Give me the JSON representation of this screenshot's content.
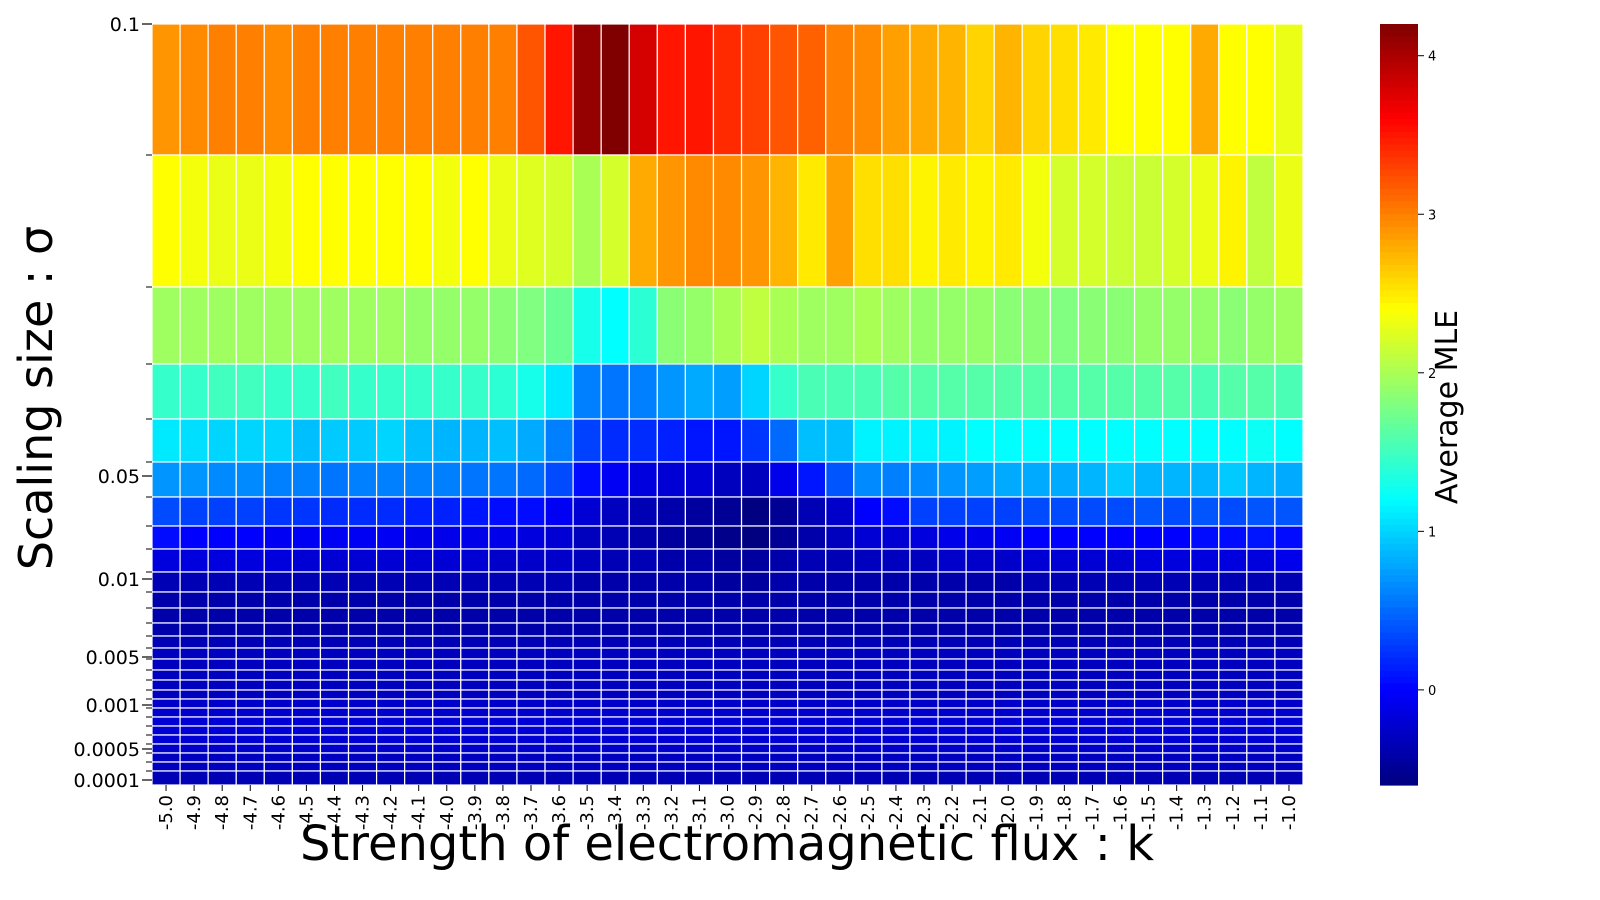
{
  "chart_data": {
    "type": "heatmap",
    "title": "",
    "xlabel": "Strength of electromagnetic flux : k",
    "ylabel": "Scaling size : σ",
    "colorbar_label": "Average MLE",
    "colormap": "jet",
    "value_range": [
      -0.6,
      4.2
    ],
    "colorbar_ticks": [
      "0",
      "1",
      "2",
      "3",
      "4"
    ],
    "x_categories": [
      "-5.0",
      "-4.9",
      "-4.8",
      "-4.7",
      "-4.6",
      "-4.5",
      "-4.4",
      "-4.3",
      "-4.2",
      "-4.1",
      "-4.0",
      "-3.9",
      "-3.8",
      "-3.7",
      "-3.6",
      "-3.5",
      "-3.4",
      "-3.3",
      "-3.2",
      "-3.1",
      "-3.0",
      "-2.9",
      "-2.8",
      "-2.7",
      "-2.6",
      "-2.5",
      "-2.4",
      "-2.3",
      "-2.2",
      "-2.1",
      "-2.0",
      "-1.9",
      "-1.8",
      "-1.7",
      "-1.6",
      "-1.5",
      "-1.4",
      "-1.3",
      "-1.2",
      "-1.1",
      "-1.0"
    ],
    "y_tick_labels": [
      "0.1",
      "0.05",
      "0.01",
      "0.005",
      "0.001",
      "0.0005",
      "0.0001"
    ],
    "y_levels": [
      0.1,
      0.09,
      0.08,
      0.07,
      0.06,
      0.05,
      0.04,
      0.03,
      0.02,
      0.01,
      0.009,
      0.008,
      0.007,
      0.006,
      0.005,
      0.004,
      0.003,
      0.002,
      0.001,
      0.0009,
      0.0008,
      0.0007,
      0.0006,
      0.0005,
      0.0004,
      0.0003,
      0.0002,
      0.0001
    ],
    "rows": [
      [
        2.9,
        2.95,
        3.0,
        3.0,
        2.95,
        3.0,
        3.0,
        3.0,
        3.0,
        3.0,
        3.0,
        3.0,
        3.0,
        3.2,
        3.5,
        4.1,
        4.2,
        3.8,
        3.5,
        3.5,
        3.4,
        3.3,
        3.2,
        3.15,
        3.0,
        2.95,
        2.85,
        2.8,
        2.75,
        2.6,
        2.75,
        2.6,
        2.55,
        2.5,
        2.4,
        2.4,
        2.4,
        2.8,
        2.4,
        2.4,
        2.3
      ],
      [
        2.4,
        2.35,
        2.3,
        2.3,
        2.35,
        2.4,
        2.4,
        2.4,
        2.4,
        2.4,
        2.35,
        2.4,
        2.3,
        2.25,
        2.2,
        2.0,
        2.2,
        2.8,
        2.9,
        2.95,
        2.95,
        2.9,
        2.75,
        2.5,
        2.85,
        2.55,
        2.55,
        2.45,
        2.5,
        2.45,
        2.5,
        2.35,
        2.2,
        2.2,
        2.15,
        2.15,
        2.2,
        2.3,
        2.45,
        2.1,
        2.3
      ],
      [
        1.95,
        1.95,
        1.95,
        1.95,
        1.95,
        1.95,
        1.95,
        1.95,
        1.95,
        1.9,
        1.9,
        1.9,
        1.85,
        1.8,
        1.7,
        1.3,
        1.2,
        1.4,
        1.85,
        1.9,
        2.0,
        2.1,
        2.0,
        1.95,
        1.95,
        2.0,
        1.95,
        1.9,
        1.9,
        1.9,
        1.85,
        1.85,
        1.8,
        1.85,
        1.85,
        1.9,
        1.9,
        1.9,
        1.85,
        1.9,
        1.95
      ],
      [
        1.45,
        1.45,
        1.5,
        1.5,
        1.45,
        1.45,
        1.5,
        1.45,
        1.45,
        1.45,
        1.45,
        1.45,
        1.4,
        1.3,
        1.1,
        0.6,
        0.55,
        0.6,
        0.7,
        0.8,
        0.75,
        1.0,
        1.45,
        1.55,
        1.55,
        1.55,
        1.6,
        1.6,
        1.6,
        1.6,
        1.6,
        1.6,
        1.6,
        1.6,
        1.6,
        1.6,
        1.6,
        1.55,
        1.6,
        1.6,
        1.55
      ],
      [
        1.1,
        1.05,
        1.0,
        1.0,
        1.0,
        0.9,
        0.95,
        0.95,
        1.0,
        0.9,
        0.85,
        0.85,
        0.9,
        0.8,
        0.6,
        0.3,
        0.2,
        0.2,
        0.15,
        0.1,
        0.1,
        0.25,
        0.5,
        0.9,
        0.9,
        1.15,
        1.15,
        1.15,
        1.15,
        1.2,
        1.2,
        1.2,
        1.2,
        1.2,
        1.2,
        1.2,
        1.2,
        1.2,
        1.2,
        1.25,
        1.2
      ],
      [
        0.7,
        0.7,
        0.65,
        0.65,
        0.6,
        0.6,
        0.55,
        0.6,
        0.6,
        0.6,
        0.6,
        0.55,
        0.55,
        0.5,
        0.35,
        0.05,
        -0.05,
        -0.15,
        -0.2,
        -0.2,
        -0.3,
        -0.3,
        -0.1,
        0.1,
        0.4,
        0.65,
        0.6,
        0.65,
        0.7,
        0.75,
        0.8,
        0.8,
        0.8,
        0.85,
        0.95,
        0.85,
        0.85,
        0.85,
        0.95,
        0.85,
        0.8
      ],
      [
        0.35,
        0.3,
        0.3,
        0.3,
        0.25,
        0.25,
        0.2,
        0.2,
        0.2,
        0.15,
        0.15,
        0.1,
        0.05,
        0.05,
        -0.05,
        -0.2,
        -0.3,
        -0.35,
        -0.4,
        -0.45,
        -0.5,
        -0.6,
        -0.5,
        -0.35,
        -0.25,
        0.0,
        0.05,
        0.3,
        0.3,
        0.3,
        0.3,
        0.35,
        0.35,
        0.35,
        0.35,
        0.4,
        0.35,
        0.4,
        0.35,
        0.4,
        0.4
      ],
      [
        0.05,
        0.0,
        0.0,
        0.0,
        -0.05,
        -0.05,
        -0.05,
        -0.05,
        -0.05,
        -0.1,
        -0.1,
        -0.1,
        -0.1,
        -0.15,
        -0.2,
        -0.3,
        -0.35,
        -0.4,
        -0.45,
        -0.5,
        -0.55,
        -0.6,
        -0.5,
        -0.4,
        -0.3,
        -0.2,
        -0.2,
        -0.15,
        -0.1,
        -0.1,
        -0.05,
        0.0,
        0.0,
        0.0,
        0.0,
        0.0,
        0.0,
        0.05,
        0.05,
        0.1,
        0.05
      ],
      [
        -0.15,
        -0.15,
        -0.15,
        -0.15,
        -0.15,
        -0.2,
        -0.2,
        -0.2,
        -0.2,
        -0.2,
        -0.2,
        -0.2,
        -0.25,
        -0.25,
        -0.25,
        -0.3,
        -0.35,
        -0.35,
        -0.4,
        -0.4,
        -0.45,
        -0.45,
        -0.4,
        -0.35,
        -0.35,
        -0.3,
        -0.3,
        -0.3,
        -0.25,
        -0.25,
        -0.25,
        -0.2,
        -0.2,
        -0.2,
        -0.2,
        -0.15,
        -0.15,
        -0.15,
        -0.15,
        -0.15,
        -0.1
      ],
      [
        -0.35,
        -0.35,
        -0.35,
        -0.35,
        -0.35,
        -0.35,
        -0.35,
        -0.35,
        -0.35,
        -0.35,
        -0.35,
        -0.35,
        -0.35,
        -0.35,
        -0.35,
        -0.4,
        -0.4,
        -0.4,
        -0.4,
        -0.4,
        -0.45,
        -0.45,
        -0.4,
        -0.4,
        -0.4,
        -0.4,
        -0.4,
        -0.4,
        -0.4,
        -0.4,
        -0.4,
        -0.35,
        -0.35,
        -0.35,
        -0.35,
        -0.35,
        -0.35,
        -0.35,
        -0.35,
        -0.35,
        -0.35
      ],
      [
        -0.4,
        -0.4,
        -0.4,
        -0.4,
        -0.4,
        -0.4,
        -0.4,
        -0.4,
        -0.4,
        -0.4,
        -0.4,
        -0.4,
        -0.4,
        -0.4,
        -0.4,
        -0.4,
        -0.4,
        -0.4,
        -0.4,
        -0.4,
        -0.4,
        -0.4,
        -0.4,
        -0.4,
        -0.4,
        -0.4,
        -0.4,
        -0.4,
        -0.4,
        -0.4,
        -0.4,
        -0.4,
        -0.4,
        -0.4,
        -0.4,
        -0.4,
        -0.4,
        -0.4,
        -0.4,
        -0.4,
        -0.4
      ],
      [
        -0.4,
        -0.4,
        -0.4,
        -0.4,
        -0.4,
        -0.4,
        -0.4,
        -0.4,
        -0.4,
        -0.4,
        -0.4,
        -0.4,
        -0.4,
        -0.4,
        -0.4,
        -0.4,
        -0.4,
        -0.4,
        -0.4,
        -0.4,
        -0.4,
        -0.4,
        -0.4,
        -0.4,
        -0.4,
        -0.4,
        -0.4,
        -0.4,
        -0.4,
        -0.4,
        -0.4,
        -0.4,
        -0.4,
        -0.4,
        -0.4,
        -0.4,
        -0.4,
        -0.4,
        -0.4,
        -0.4,
        -0.4
      ],
      [
        -0.4,
        -0.4,
        -0.4,
        -0.4,
        -0.4,
        -0.4,
        -0.4,
        -0.4,
        -0.4,
        -0.4,
        -0.4,
        -0.4,
        -0.4,
        -0.4,
        -0.4,
        -0.4,
        -0.4,
        -0.4,
        -0.4,
        -0.4,
        -0.4,
        -0.4,
        -0.4,
        -0.4,
        -0.4,
        -0.4,
        -0.4,
        -0.4,
        -0.4,
        -0.4,
        -0.4,
        -0.4,
        -0.4,
        -0.4,
        -0.4,
        -0.4,
        -0.4,
        -0.4,
        -0.4,
        -0.4,
        -0.4
      ],
      [
        -0.35,
        -0.35,
        -0.35,
        -0.35,
        -0.35,
        -0.35,
        -0.35,
        -0.35,
        -0.35,
        -0.35,
        -0.35,
        -0.35,
        -0.35,
        -0.35,
        -0.35,
        -0.35,
        -0.35,
        -0.35,
        -0.35,
        -0.35,
        -0.35,
        -0.35,
        -0.35,
        -0.35,
        -0.35,
        -0.35,
        -0.35,
        -0.35,
        -0.35,
        -0.35,
        -0.35,
        -0.35,
        -0.35,
        -0.35,
        -0.35,
        -0.35,
        -0.35,
        -0.35,
        -0.35,
        -0.35,
        -0.35
      ],
      [
        -0.3,
        -0.3,
        -0.3,
        -0.3,
        -0.3,
        -0.3,
        -0.3,
        -0.3,
        -0.3,
        -0.3,
        -0.3,
        -0.3,
        -0.3,
        -0.3,
        -0.3,
        -0.3,
        -0.3,
        -0.3,
        -0.3,
        -0.3,
        -0.3,
        -0.3,
        -0.3,
        -0.3,
        -0.3,
        -0.3,
        -0.3,
        -0.3,
        -0.3,
        -0.3,
        -0.3,
        -0.3,
        -0.3,
        -0.3,
        -0.3,
        -0.3,
        -0.3,
        -0.3,
        -0.3,
        -0.3,
        -0.3
      ],
      [
        -0.3,
        -0.3,
        -0.3,
        -0.3,
        -0.3,
        -0.3,
        -0.3,
        -0.3,
        -0.3,
        -0.3,
        -0.3,
        -0.3,
        -0.3,
        -0.3,
        -0.3,
        -0.3,
        -0.3,
        -0.3,
        -0.3,
        -0.3,
        -0.3,
        -0.3,
        -0.3,
        -0.3,
        -0.3,
        -0.3,
        -0.3,
        -0.3,
        -0.3,
        -0.3,
        -0.3,
        -0.3,
        -0.3,
        -0.3,
        -0.3,
        -0.3,
        -0.3,
        -0.3,
        -0.3,
        -0.3,
        -0.3
      ],
      [
        -0.3,
        -0.3,
        -0.3,
        -0.3,
        -0.3,
        -0.3,
        -0.3,
        -0.3,
        -0.3,
        -0.3,
        -0.3,
        -0.3,
        -0.3,
        -0.3,
        -0.3,
        -0.3,
        -0.3,
        -0.3,
        -0.3,
        -0.3,
        -0.3,
        -0.3,
        -0.3,
        -0.3,
        -0.3,
        -0.3,
        -0.3,
        -0.3,
        -0.3,
        -0.3,
        -0.3,
        -0.3,
        -0.3,
        -0.3,
        -0.3,
        -0.3,
        -0.3,
        -0.3,
        -0.3,
        -0.3,
        -0.3
      ],
      [
        -0.3,
        -0.3,
        -0.3,
        -0.3,
        -0.3,
        -0.3,
        -0.3,
        -0.3,
        -0.3,
        -0.3,
        -0.3,
        -0.3,
        -0.3,
        -0.3,
        -0.3,
        -0.3,
        -0.3,
        -0.3,
        -0.3,
        -0.3,
        -0.3,
        -0.3,
        -0.3,
        -0.3,
        -0.3,
        -0.3,
        -0.3,
        -0.3,
        -0.3,
        -0.3,
        -0.3,
        -0.3,
        -0.3,
        -0.3,
        -0.3,
        -0.3,
        -0.3,
        -0.3,
        -0.3,
        -0.3,
        -0.3
      ],
      [
        -0.3,
        -0.3,
        -0.3,
        -0.3,
        -0.3,
        -0.3,
        -0.3,
        -0.3,
        -0.3,
        -0.3,
        -0.3,
        -0.3,
        -0.3,
        -0.3,
        -0.3,
        -0.3,
        -0.3,
        -0.3,
        -0.3,
        -0.3,
        -0.3,
        -0.3,
        -0.3,
        -0.3,
        -0.3,
        -0.3,
        -0.3,
        -0.3,
        -0.3,
        -0.3,
        -0.3,
        -0.3,
        -0.3,
        -0.3,
        -0.3,
        -0.3,
        -0.3,
        -0.3,
        -0.3,
        -0.3,
        -0.3
      ],
      [
        -0.25,
        -0.25,
        -0.25,
        -0.25,
        -0.25,
        -0.25,
        -0.25,
        -0.25,
        -0.25,
        -0.25,
        -0.25,
        -0.25,
        -0.25,
        -0.25,
        -0.25,
        -0.25,
        -0.25,
        -0.25,
        -0.25,
        -0.25,
        -0.25,
        -0.25,
        -0.25,
        -0.25,
        -0.25,
        -0.25,
        -0.25,
        -0.25,
        -0.25,
        -0.25,
        -0.25,
        -0.25,
        -0.25,
        -0.25,
        -0.25,
        -0.25,
        -0.25,
        -0.25,
        -0.25,
        -0.25,
        -0.25
      ],
      [
        -0.25,
        -0.25,
        -0.25,
        -0.25,
        -0.25,
        -0.25,
        -0.25,
        -0.25,
        -0.25,
        -0.25,
        -0.25,
        -0.25,
        -0.25,
        -0.25,
        -0.25,
        -0.25,
        -0.25,
        -0.25,
        -0.25,
        -0.25,
        -0.25,
        -0.25,
        -0.25,
        -0.25,
        -0.25,
        -0.25,
        -0.25,
        -0.25,
        -0.25,
        -0.25,
        -0.25,
        -0.25,
        -0.25,
        -0.25,
        -0.25,
        -0.25,
        -0.25,
        -0.25,
        -0.25,
        -0.25,
        -0.25
      ],
      [
        -0.2,
        -0.2,
        -0.2,
        -0.2,
        -0.2,
        -0.2,
        -0.2,
        -0.2,
        -0.2,
        -0.2,
        -0.2,
        -0.2,
        -0.2,
        -0.2,
        -0.2,
        -0.2,
        -0.2,
        -0.2,
        -0.2,
        -0.2,
        -0.2,
        -0.2,
        -0.2,
        -0.2,
        -0.2,
        -0.2,
        -0.2,
        -0.2,
        -0.2,
        -0.2,
        -0.2,
        -0.2,
        -0.2,
        -0.2,
        -0.2,
        -0.2,
        -0.2,
        -0.2,
        -0.2,
        -0.2,
        -0.2
      ],
      [
        -0.2,
        -0.2,
        -0.2,
        -0.2,
        -0.2,
        -0.2,
        -0.2,
        -0.2,
        -0.2,
        -0.2,
        -0.2,
        -0.2,
        -0.2,
        -0.2,
        -0.2,
        -0.2,
        -0.2,
        -0.2,
        -0.2,
        -0.2,
        -0.2,
        -0.2,
        -0.2,
        -0.2,
        -0.2,
        -0.2,
        -0.2,
        -0.2,
        -0.2,
        -0.2,
        -0.2,
        -0.2,
        -0.2,
        -0.2,
        -0.2,
        -0.2,
        -0.2,
        -0.2,
        -0.2,
        -0.2,
        -0.2
      ],
      [
        -0.2,
        -0.2,
        -0.2,
        -0.2,
        -0.2,
        -0.2,
        -0.2,
        -0.2,
        -0.2,
        -0.2,
        -0.2,
        -0.2,
        -0.2,
        -0.2,
        -0.2,
        -0.2,
        -0.2,
        -0.2,
        -0.2,
        -0.2,
        -0.2,
        -0.2,
        -0.2,
        -0.2,
        -0.2,
        -0.2,
        -0.2,
        -0.2,
        -0.2,
        -0.2,
        -0.2,
        -0.2,
        -0.2,
        -0.2,
        -0.2,
        -0.2,
        -0.2,
        -0.2,
        -0.2,
        -0.2,
        -0.2
      ],
      [
        -0.25,
        -0.25,
        -0.25,
        -0.25,
        -0.25,
        -0.25,
        -0.25,
        -0.25,
        -0.25,
        -0.25,
        -0.25,
        -0.25,
        -0.25,
        -0.25,
        -0.25,
        -0.25,
        -0.25,
        -0.25,
        -0.25,
        -0.25,
        -0.25,
        -0.25,
        -0.25,
        -0.25,
        -0.25,
        -0.25,
        -0.25,
        -0.25,
        -0.25,
        -0.25,
        -0.25,
        -0.25,
        -0.25,
        -0.25,
        -0.25,
        -0.25,
        -0.25,
        -0.25,
        -0.25,
        -0.25,
        -0.25
      ],
      [
        -0.3,
        -0.3,
        -0.3,
        -0.3,
        -0.3,
        -0.3,
        -0.3,
        -0.3,
        -0.3,
        -0.3,
        -0.3,
        -0.3,
        -0.3,
        -0.3,
        -0.3,
        -0.3,
        -0.3,
        -0.3,
        -0.3,
        -0.3,
        -0.3,
        -0.3,
        -0.3,
        -0.3,
        -0.3,
        -0.3,
        -0.3,
        -0.3,
        -0.3,
        -0.3,
        -0.3,
        -0.3,
        -0.3,
        -0.3,
        -0.3,
        -0.3,
        -0.3,
        -0.3,
        -0.3,
        -0.3,
        -0.3
      ],
      [
        -0.3,
        -0.3,
        -0.3,
        -0.3,
        -0.3,
        -0.3,
        -0.3,
        -0.3,
        -0.3,
        -0.3,
        -0.3,
        -0.3,
        -0.3,
        -0.3,
        -0.3,
        -0.3,
        -0.3,
        -0.3,
        -0.3,
        -0.3,
        -0.3,
        -0.3,
        -0.3,
        -0.3,
        -0.3,
        -0.3,
        -0.3,
        -0.3,
        -0.3,
        -0.3,
        -0.3,
        -0.3,
        -0.3,
        -0.3,
        -0.3,
        -0.3,
        -0.3,
        -0.3,
        -0.3,
        -0.3,
        -0.3
      ],
      [
        -0.35,
        -0.35,
        -0.35,
        -0.35,
        -0.35,
        -0.35,
        -0.35,
        -0.35,
        -0.35,
        -0.35,
        -0.35,
        -0.35,
        -0.35,
        -0.35,
        -0.35,
        -0.35,
        -0.35,
        -0.35,
        -0.35,
        -0.35,
        -0.35,
        -0.35,
        -0.35,
        -0.35,
        -0.35,
        -0.35,
        -0.35,
        -0.35,
        -0.35,
        -0.35,
        -0.35,
        -0.35,
        -0.35,
        -0.35,
        -0.35,
        -0.35,
        -0.35,
        -0.35,
        -0.35,
        -0.35,
        -0.35
      ]
    ]
  }
}
